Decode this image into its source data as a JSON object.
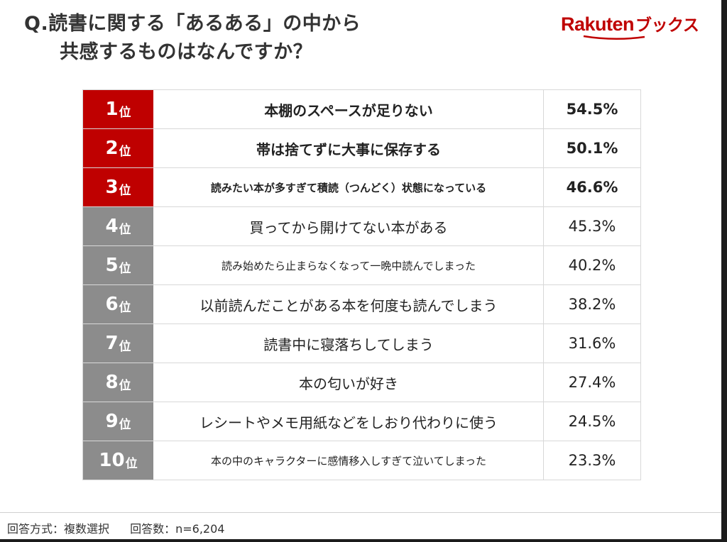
{
  "header": {
    "question_line1": "Q.読書に関する「あるある」の中から",
    "question_line2": "共感するものはなんですか？"
  },
  "brand": {
    "name": "Rakuten",
    "suffix": "ブックス",
    "color": "#bf0000"
  },
  "colors": {
    "top_rank": "#bf0000",
    "other_rank": "#8c8c8c"
  },
  "chart_data": {
    "type": "table",
    "title": "Q.読書に関する「あるある」の中から 共感するものはなんですか？",
    "columns": [
      "rank",
      "item",
      "percent"
    ],
    "rank_suffix": "位",
    "rows": [
      {
        "rank": "1",
        "item": "本棚のスペースが足りない",
        "value": 54.5,
        "percent": "54.5%"
      },
      {
        "rank": "2",
        "item": "帯は捨てずに大事に保存する",
        "value": 50.1,
        "percent": "50.1%"
      },
      {
        "rank": "3",
        "item": "読みたい本が多すぎて積読（つんどく）状態になっている",
        "value": 46.6,
        "percent": "46.6%"
      },
      {
        "rank": "4",
        "item": "買ってから開けてない本がある",
        "value": 45.3,
        "percent": "45.3%"
      },
      {
        "rank": "5",
        "item": "読み始めたら止まらなくなって一晩中読んでしまった",
        "value": 40.2,
        "percent": "40.2%"
      },
      {
        "rank": "6",
        "item": "以前読んだことがある本を何度も読んでしまう",
        "value": 38.2,
        "percent": "38.2%"
      },
      {
        "rank": "7",
        "item": "読書中に寝落ちしてしまう",
        "value": 31.6,
        "percent": "31.6%"
      },
      {
        "rank": "8",
        "item": "本の匂いが好き",
        "value": 27.4,
        "percent": "27.4%"
      },
      {
        "rank": "9",
        "item": "レシートやメモ用紙などをしおり代わりに使う",
        "value": 24.5,
        "percent": "24.5%"
      },
      {
        "rank": "10",
        "item": "本の中のキャラクターに感情移入しすぎて泣いてしまった",
        "value": 23.3,
        "percent": "23.3%"
      }
    ]
  },
  "footer": {
    "method": "回答方式：複数選択",
    "count": "回答数：n=6,204"
  }
}
